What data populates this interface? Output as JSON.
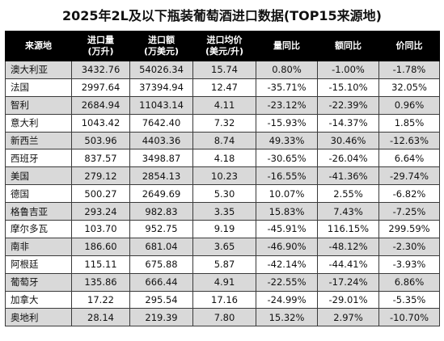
{
  "title": "2025年2L及以下瓶装葡萄酒进口数据(TOP15来源地)",
  "headers": [
    [
      "来源地"
    ],
    [
      "进口量",
      "(万升)"
    ],
    [
      "进口额",
      "(万美元)"
    ],
    [
      "进口均价",
      "(美元/升)"
    ],
    [
      "量同比"
    ],
    [
      "额同比"
    ],
    [
      "价同比"
    ]
  ],
  "rows": [
    [
      "澳大利亚",
      "3432.76",
      "54026.34",
      "15.74",
      "0.80%",
      "-1.00%",
      "-1.78%"
    ],
    [
      "法国",
      "2997.64",
      "37394.94",
      "12.47",
      "-35.71%",
      "-15.10%",
      "32.05%"
    ],
    [
      "智利",
      "2684.94",
      "11043.14",
      "4.11",
      "-23.12%",
      "-22.39%",
      "0.96%"
    ],
    [
      "意大利",
      "1043.42",
      "7642.40",
      "7.32",
      "-15.93%",
      "-14.37%",
      "1.85%"
    ],
    [
      "新西兰",
      "503.96",
      "4403.36",
      "8.74",
      "49.33%",
      "30.46%",
      "-12.63%"
    ],
    [
      "西班牙",
      "837.57",
      "3498.87",
      "4.18",
      "-30.65%",
      "-26.04%",
      "6.64%"
    ],
    [
      "美国",
      "279.12",
      "2854.13",
      "10.23",
      "-16.55%",
      "-41.36%",
      "-29.74%"
    ],
    [
      "德国",
      "500.27",
      "2649.69",
      "5.30",
      "10.07%",
      "2.55%",
      "-6.82%"
    ],
    [
      "格鲁吉亚",
      "293.24",
      "982.83",
      "3.35",
      "15.83%",
      "7.43%",
      "-7.25%"
    ],
    [
      "摩尔多瓦",
      "103.70",
      "952.75",
      "9.19",
      "-45.91%",
      "116.15%",
      "299.59%"
    ],
    [
      "南非",
      "186.60",
      "681.04",
      "3.65",
      "-46.90%",
      "-48.12%",
      "-2.30%"
    ],
    [
      "阿根廷",
      "115.11",
      "675.88",
      "5.87",
      "-42.14%",
      "-44.41%",
      "-3.93%"
    ],
    [
      "葡萄牙",
      "135.86",
      "666.44",
      "4.91",
      "-22.55%",
      "-17.24%",
      "6.86%"
    ],
    [
      "加拿大",
      "17.22",
      "295.54",
      "17.16",
      "-24.99%",
      "-29.01%",
      "-5.35%"
    ],
    [
      "奥地利",
      "28.14",
      "219.39",
      "7.80",
      "15.32%",
      "2.97%",
      "-10.70%"
    ]
  ],
  "colors": {
    "header_bg": "#000000",
    "header_text": "#ffffff",
    "stripe": "#d9d9d9"
  }
}
